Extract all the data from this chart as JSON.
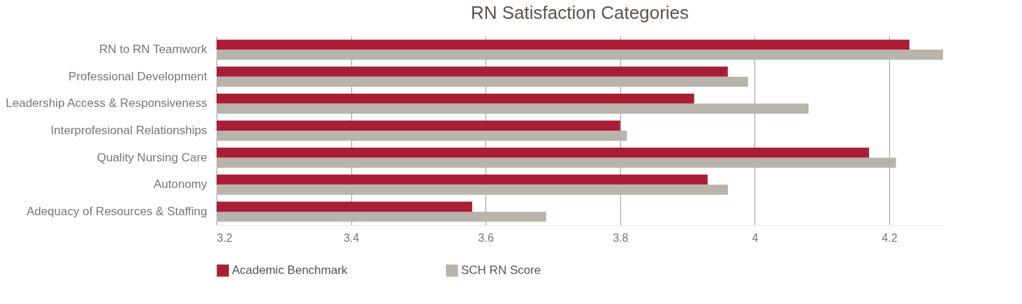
{
  "chart_data": {
    "type": "bar",
    "orientation": "horizontal",
    "title": "RN Satisfaction Categories",
    "categories": [
      "RN to RN Teamwork",
      "Professional Development",
      "Leadership Access & Responsiveness",
      "Interprofesional Relationships",
      "Quality Nursing Care",
      "Autonomy",
      "Adequacy of Resources & Staffing"
    ],
    "series": [
      {
        "name": "Academic Benchmark",
        "color": "#a91e37",
        "values": [
          4.23,
          3.96,
          3.91,
          3.8,
          4.17,
          3.93,
          3.58
        ]
      },
      {
        "name": "SCH RN Score",
        "color": "#b8b3ab",
        "values": [
          4.28,
          3.99,
          4.08,
          3.81,
          4.21,
          3.96,
          3.69
        ]
      }
    ],
    "xlim": [
      3.2,
      4.28
    ],
    "xticks": [
      3.2,
      3.4,
      3.6,
      3.8,
      4,
      4.2
    ],
    "grid": "x",
    "legend": "bottom"
  }
}
